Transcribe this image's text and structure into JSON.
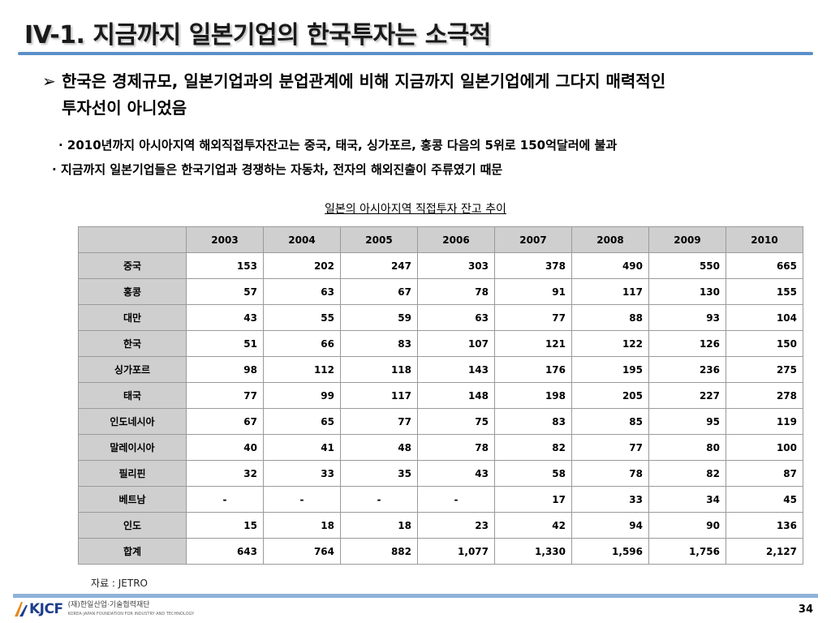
{
  "title": "IV-1. 지금까지  일본기업의  한국투자는 소극적",
  "bullet": {
    "line1": "한국은 경제규모, 일본기업과의 분업관계에 비해 지금까지 일본기업에게 그다지 매력적인",
    "line2": "투자선이 아니었음"
  },
  "sub_items": [
    "· 2010년까지 아시아지역 해외직접투자잔고는 중국, 태국, 싱가포르, 홍콩 다음의 5위로 150억달러에 불과",
    "· 지금까지 일본기업들은 한국기업과 경쟁하는 자동차, 전자의 해외진출이 주류였기 때문"
  ],
  "table_title": "일본의 아시아지역 직접투자 잔고 추이",
  "table": {
    "years": [
      "2003",
      "2004",
      "2005",
      "2006",
      "2007",
      "2008",
      "2009",
      "2010"
    ],
    "rows": [
      {
        "label": "중국",
        "values": [
          "153",
          "202",
          "247",
          "303",
          "378",
          "490",
          "550",
          "665"
        ]
      },
      {
        "label": "홍콩",
        "values": [
          "57",
          "63",
          "67",
          "78",
          "91",
          "117",
          "130",
          "155"
        ]
      },
      {
        "label": "대만",
        "values": [
          "43",
          "55",
          "59",
          "63",
          "77",
          "88",
          "93",
          "104"
        ]
      },
      {
        "label": "한국",
        "values": [
          "51",
          "66",
          "83",
          "107",
          "121",
          "122",
          "126",
          "150"
        ]
      },
      {
        "label": "싱가포르",
        "values": [
          "98",
          "112",
          "118",
          "143",
          "176",
          "195",
          "236",
          "275"
        ]
      },
      {
        "label": "태국",
        "values": [
          "77",
          "99",
          "117",
          "148",
          "198",
          "205",
          "227",
          "278"
        ]
      },
      {
        "label": "인도네시아",
        "values": [
          "67",
          "65",
          "77",
          "75",
          "83",
          "85",
          "95",
          "119"
        ]
      },
      {
        "label": "말레이시아",
        "values": [
          "40",
          "41",
          "48",
          "78",
          "82",
          "77",
          "80",
          "100"
        ]
      },
      {
        "label": "필리핀",
        "values": [
          "32",
          "33",
          "35",
          "43",
          "58",
          "78",
          "82",
          "87"
        ]
      },
      {
        "label": "베트남",
        "values": [
          "-",
          "-",
          "-",
          "-",
          "17",
          "33",
          "34",
          "45"
        ]
      },
      {
        "label": "인도",
        "values": [
          "15",
          "18",
          "18",
          "23",
          "42",
          "94",
          "90",
          "136"
        ]
      },
      {
        "label": "합계",
        "values": [
          "643",
          "764",
          "882",
          "1,077",
          "1,330",
          "1,596",
          "1,756",
          "2,127"
        ]
      }
    ]
  },
  "source": "자료 : JETRO",
  "footer": {
    "logo_text": "KJCF",
    "org_name": "(재)한일산업·기술협력재단",
    "org_sub": "KOREA-JAPAN FOUNDATION FOR INDUSTRY AND TECHNOLOGY",
    "page_number": "34"
  },
  "colors": {
    "rule_top": "#5b8fc7",
    "rule_bottom": "#8fb3d9",
    "header_fill": "#cfcfcf",
    "logo_blue": "#1d3e8a",
    "logo_orange": "#e58a1f"
  }
}
